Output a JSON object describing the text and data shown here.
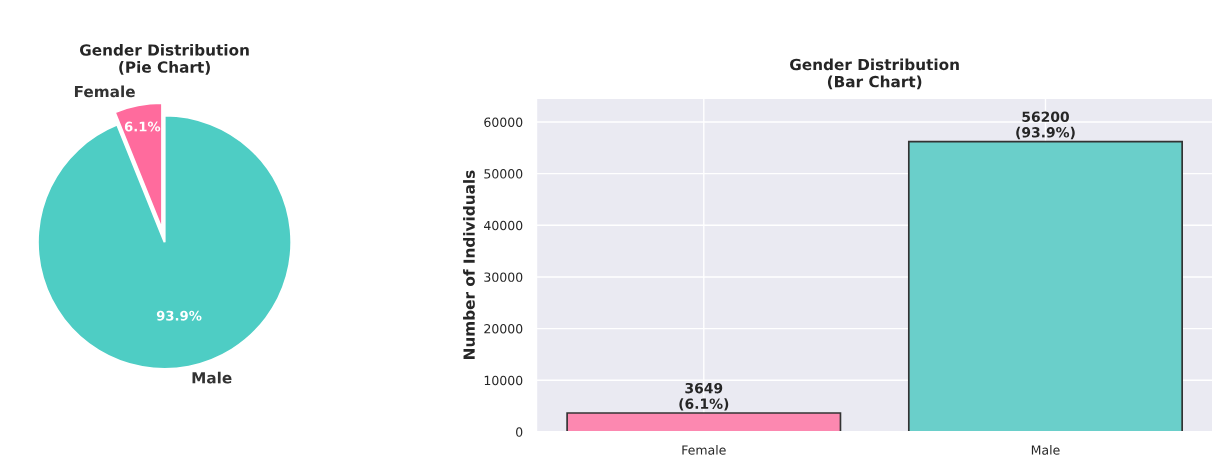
{
  "chart_data": [
    {
      "type": "pie",
      "title": "Gender Distribution\n(Pie Chart)",
      "categories": [
        "Female",
        "Male"
      ],
      "values": [
        6.1,
        93.9
      ],
      "colors": [
        "#ff6b9d",
        "#4ecdc4"
      ],
      "value_labels": [
        "6.1%",
        "93.9%"
      ]
    },
    {
      "type": "bar",
      "title": "Gender Distribution\n(Bar Chart)",
      "ylabel": "Number of Individuals",
      "categories": [
        "Female",
        "Male"
      ],
      "values": [
        3649,
        56200
      ],
      "colors": [
        "#fc88b0",
        "#6acfca"
      ],
      "value_labels": [
        "3649\n(6.1%)",
        "56200\n(93.9%)"
      ],
      "ylim": [
        0,
        64600
      ],
      "yticks": [
        0,
        10000,
        20000,
        30000,
        40000,
        50000,
        60000
      ],
      "grid": true
    }
  ]
}
